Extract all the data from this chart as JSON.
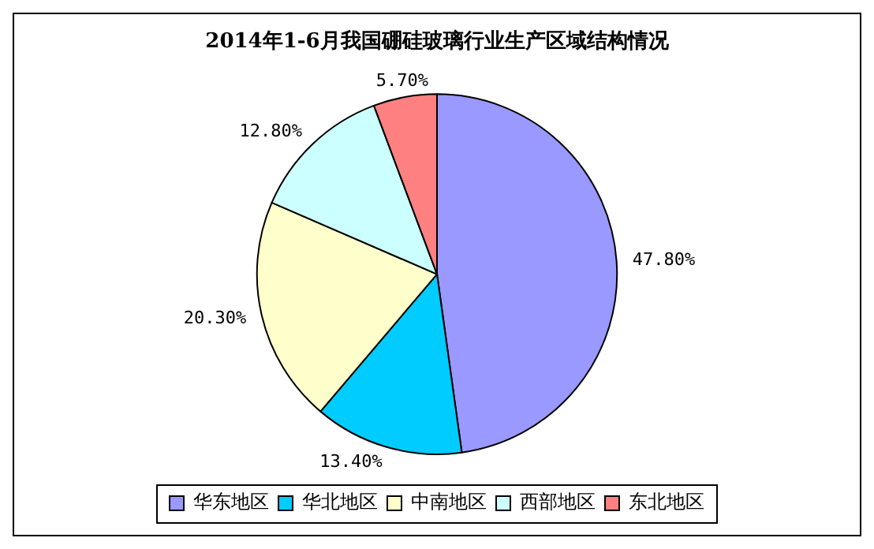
{
  "chart_data": {
    "type": "pie",
    "title": "2014年1-6月我国硼硅玻璃行业生产区域结构情况",
    "categories": [
      "华东地区",
      "华北地区",
      "中南地区",
      "西部地区",
      "东北地区"
    ],
    "values": [
      47.8,
      13.4,
      20.3,
      12.8,
      5.7
    ],
    "colors": [
      "#9999ff",
      "#00ccff",
      "#ffffcc",
      "#ccffff",
      "#ff8080"
    ],
    "value_labels": [
      "47.80%",
      "13.40%",
      "20.30%",
      "12.80%",
      "5.70%"
    ],
    "legend": "bottom"
  }
}
